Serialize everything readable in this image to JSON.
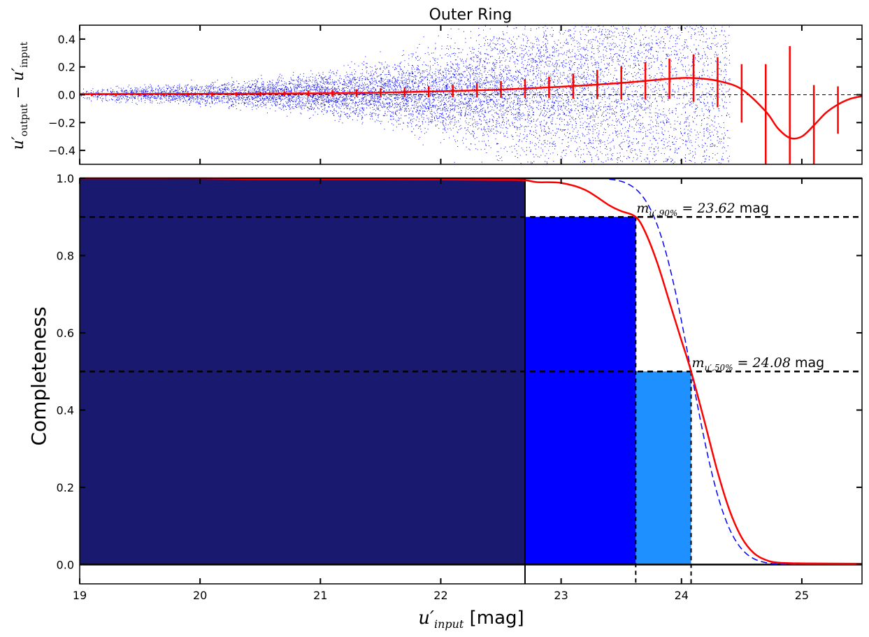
{
  "chart_data": [
    {
      "type": "scatter",
      "title": "Outer Ring",
      "ylabel": "u′output − u′input",
      "ylim": [
        -0.5,
        0.5
      ],
      "xlim": [
        19,
        25.5
      ],
      "yticks": [
        "0.4",
        "0.2",
        "0.0",
        "−0.2",
        "−0.4"
      ],
      "yticks_values": [
        0.4,
        0.2,
        0.0,
        -0.2,
        -0.4
      ],
      "reference_line_y": 0.0,
      "scatter_color": "#0000ff",
      "bin_color": "#ff0000",
      "binned_points": [
        {
          "x": 19.1,
          "y": 0.0,
          "err": 0.01
        },
        {
          "x": 19.3,
          "y": 0.0,
          "err": 0.01
        },
        {
          "x": 19.5,
          "y": 0.0,
          "err": 0.01
        },
        {
          "x": 19.7,
          "y": 0.0,
          "err": 0.012
        },
        {
          "x": 19.9,
          "y": 0.003,
          "err": 0.012
        },
        {
          "x": 20.1,
          "y": 0.003,
          "err": 0.014
        },
        {
          "x": 20.3,
          "y": 0.004,
          "err": 0.015
        },
        {
          "x": 20.5,
          "y": 0.005,
          "err": 0.017
        },
        {
          "x": 20.7,
          "y": 0.007,
          "err": 0.019
        },
        {
          "x": 20.9,
          "y": 0.008,
          "err": 0.021
        },
        {
          "x": 21.1,
          "y": 0.01,
          "err": 0.024
        },
        {
          "x": 21.3,
          "y": 0.012,
          "err": 0.027
        },
        {
          "x": 21.5,
          "y": 0.015,
          "err": 0.031
        },
        {
          "x": 21.7,
          "y": 0.018,
          "err": 0.035
        },
        {
          "x": 21.9,
          "y": 0.022,
          "err": 0.04
        },
        {
          "x": 22.1,
          "y": 0.027,
          "err": 0.045
        },
        {
          "x": 22.3,
          "y": 0.032,
          "err": 0.052
        },
        {
          "x": 22.5,
          "y": 0.038,
          "err": 0.06
        },
        {
          "x": 22.7,
          "y": 0.045,
          "err": 0.068
        },
        {
          "x": 22.9,
          "y": 0.053,
          "err": 0.078
        },
        {
          "x": 23.1,
          "y": 0.062,
          "err": 0.09
        },
        {
          "x": 23.3,
          "y": 0.073,
          "err": 0.105
        },
        {
          "x": 23.5,
          "y": 0.085,
          "err": 0.12
        },
        {
          "x": 23.7,
          "y": 0.1,
          "err": 0.135
        },
        {
          "x": 23.9,
          "y": 0.115,
          "err": 0.145
        },
        {
          "x": 24.1,
          "y": 0.12,
          "err": 0.17
        },
        {
          "x": 24.3,
          "y": 0.09,
          "err": 0.18
        },
        {
          "x": 24.5,
          "y": 0.01,
          "err": 0.21
        },
        {
          "x": 24.7,
          "y": -0.16,
          "err": 0.38
        },
        {
          "x": 24.9,
          "y": -0.3,
          "err": 0.65
        },
        {
          "x": 25.1,
          "y": -0.24,
          "err": 0.31
        },
        {
          "x": 25.3,
          "y": -0.11,
          "err": 0.17
        }
      ],
      "fit_curve": {
        "x": [
          19.0,
          20.0,
          21.0,
          21.5,
          22.0,
          22.5,
          23.0,
          23.5,
          23.9,
          24.1,
          24.3,
          24.5,
          24.7,
          24.8,
          24.9,
          25.0,
          25.1,
          25.2,
          25.3,
          25.4,
          25.5
        ],
        "y": [
          0.005,
          0.006,
          0.01,
          0.015,
          0.025,
          0.037,
          0.058,
          0.085,
          0.115,
          0.12,
          0.1,
          0.04,
          -0.12,
          -0.24,
          -0.31,
          -0.3,
          -0.22,
          -0.13,
          -0.07,
          -0.03,
          -0.01
        ]
      }
    },
    {
      "type": "area",
      "ylabel": "Completeness",
      "xlabel": "u′input [mag]",
      "xlim": [
        19,
        25.5
      ],
      "ylim": [
        -0.05,
        1.0
      ],
      "xticks": [
        "19",
        "20",
        "21",
        "22",
        "23",
        "24",
        "25"
      ],
      "xticks_values": [
        19,
        20,
        21,
        22,
        23,
        24,
        25
      ],
      "yticks": [
        "1.0",
        "0.8",
        "0.6",
        "0.4",
        "0.2",
        "0.0"
      ],
      "yticks_values": [
        1.0,
        0.8,
        0.6,
        0.4,
        0.2,
        0.0
      ],
      "regions": [
        {
          "x_start": 19.0,
          "x_end": 22.7,
          "height": 1.0,
          "color": "#191970"
        },
        {
          "x_start": 22.7,
          "x_end": 23.62,
          "height": 0.9,
          "color": "#0000ff"
        },
        {
          "x_start": 23.62,
          "x_end": 24.08,
          "height": 0.5,
          "color": "#1e90ff"
        }
      ],
      "thresholds": [
        {
          "y": 0.9,
          "x": 23.62,
          "label": "m",
          "sub": "u′,90%",
          "value_text": "= 23.62",
          "unit": "mag"
        },
        {
          "y": 0.5,
          "x": 24.08,
          "label": "m",
          "sub": "u′,50%",
          "value_text": "= 24.08",
          "unit": "mag"
        }
      ],
      "vline_solid_x": 22.7,
      "completeness_curve": {
        "x": [
          19.0,
          19.5,
          20.0,
          20.5,
          21.0,
          21.5,
          22.0,
          22.5,
          22.7,
          22.8,
          23.0,
          23.2,
          23.4,
          23.5,
          23.62,
          23.7,
          23.8,
          23.9,
          24.0,
          24.08,
          24.2,
          24.3,
          24.4,
          24.5,
          24.6,
          24.7,
          24.8,
          25.0,
          25.5
        ],
        "y": [
          1.0,
          1.0,
          1.0,
          0.998,
          0.998,
          0.998,
          0.997,
          0.996,
          0.995,
          0.99,
          0.988,
          0.97,
          0.93,
          0.915,
          0.9,
          0.86,
          0.78,
          0.68,
          0.58,
          0.5,
          0.36,
          0.24,
          0.14,
          0.07,
          0.03,
          0.012,
          0.005,
          0.003,
          0.002
        ]
      },
      "model_curve_color": "#0000ff",
      "data_curve_color": "#ff0000"
    }
  ]
}
